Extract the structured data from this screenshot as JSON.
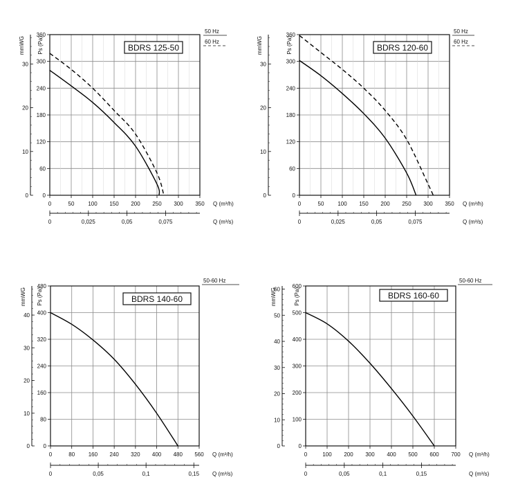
{
  "chart_data": [
    {
      "type": "line",
      "title": "BDRS 125-50",
      "x_axis": {
        "label": "Q (m³/h)",
        "ticks": [
          "0",
          "50",
          "100",
          "150",
          "200",
          "250",
          "300",
          "350"
        ],
        "range": [
          0,
          350
        ]
      },
      "x2_axis": {
        "label": "Q (m³/s)",
        "ticks": [
          "0",
          "0,025",
          "0,05",
          "0,075"
        ],
        "range": [
          0,
          0.0972
        ]
      },
      "y_axis": {
        "label": "Ps (Pa)",
        "ticks": [
          "0",
          "60",
          "120",
          "180",
          "240",
          "300",
          "360"
        ],
        "range": [
          0,
          360
        ]
      },
      "y2_axis": {
        "label": "mmWG",
        "ticks": [
          "0",
          "10",
          "20",
          "30"
        ],
        "range": [
          0,
          36.7
        ]
      },
      "legend": [
        {
          "name": "50 Hz",
          "style": "solid"
        },
        {
          "name": "60 Hz",
          "style": "dashed"
        }
      ],
      "series": [
        {
          "name": "50 Hz",
          "style": "solid",
          "x": [
            0,
            50,
            100,
            150,
            200,
            250,
            255
          ],
          "y": [
            280,
            245,
            208,
            163,
            110,
            25,
            0
          ]
        },
        {
          "name": "60 Hz",
          "style": "dashed",
          "x": [
            0,
            50,
            100,
            150,
            200,
            250,
            266
          ],
          "y": [
            318,
            282,
            240,
            190,
            137,
            50,
            0
          ]
        }
      ],
      "grid": true
    },
    {
      "type": "line",
      "title": "BDRS 120-60",
      "x_axis": {
        "label": "Q (m³/h)",
        "ticks": [
          "0",
          "50",
          "100",
          "150",
          "200",
          "250",
          "300",
          "350"
        ],
        "range": [
          0,
          350
        ]
      },
      "x2_axis": {
        "label": "Q (m³/s)",
        "ticks": [
          "0",
          "0,025",
          "0,05",
          "0,075"
        ],
        "range": [
          0,
          0.0972
        ]
      },
      "y_axis": {
        "label": "Ps (Pa)",
        "ticks": [
          "0",
          "60",
          "120",
          "180",
          "240",
          "300",
          "360"
        ],
        "range": [
          0,
          360
        ]
      },
      "y2_axis": {
        "label": "mmWG",
        "ticks": [
          "0",
          "10",
          "20",
          "30"
        ],
        "range": [
          0,
          36.7
        ]
      },
      "legend": [
        {
          "name": "50 Hz",
          "style": "solid"
        },
        {
          "name": "60 Hz",
          "style": "dashed"
        }
      ],
      "series": [
        {
          "name": "50 Hz",
          "style": "solid",
          "x": [
            0,
            50,
            100,
            150,
            200,
            250,
            272
          ],
          "y": [
            302,
            268,
            228,
            183,
            128,
            50,
            0
          ]
        },
        {
          "name": "60 Hz",
          "style": "dashed",
          "x": [
            0,
            50,
            100,
            150,
            200,
            250,
            300,
            312
          ],
          "y": [
            358,
            320,
            282,
            240,
            190,
            125,
            25,
            0
          ]
        }
      ],
      "grid": true
    },
    {
      "type": "line",
      "title": "BDRS 140-60",
      "x_axis": {
        "label": "Q (m³/h)",
        "ticks": [
          "0",
          "80",
          "160",
          "240",
          "320",
          "400",
          "480",
          "560"
        ],
        "range": [
          0,
          560
        ]
      },
      "x2_axis": {
        "label": "Q (m³/s)",
        "ticks": [
          "0",
          "0,05",
          "0,1",
          "0,15"
        ],
        "range": [
          0,
          0.1556
        ]
      },
      "y_axis": {
        "label": "Ps (Pa)",
        "ticks": [
          "0",
          "80",
          "160",
          "240",
          "320",
          "400",
          "480"
        ],
        "range": [
          0,
          480
        ]
      },
      "y2_axis": {
        "label": "mmWG",
        "ticks": [
          "0",
          "10",
          "20",
          "30",
          "40"
        ],
        "range": [
          0,
          48.9
        ]
      },
      "legend": [
        {
          "name": "50-60 Hz",
          "style": "solid"
        }
      ],
      "series": [
        {
          "name": "50-60 Hz",
          "style": "solid",
          "x": [
            0,
            80,
            160,
            240,
            320,
            400,
            480
          ],
          "y": [
            400,
            365,
            318,
            260,
            185,
            98,
            0
          ]
        }
      ],
      "grid": true
    },
    {
      "type": "line",
      "title": "BDRS 160-60",
      "x_axis": {
        "label": "Q (m³/h)",
        "ticks": [
          "0",
          "100",
          "200",
          "300",
          "400",
          "500",
          "600",
          "700"
        ],
        "range": [
          0,
          700
        ]
      },
      "x2_axis": {
        "label": "Q (m³/s)",
        "ticks": [
          "0",
          "0,05",
          "0,1",
          "0,15"
        ],
        "range": [
          0,
          0.1944
        ]
      },
      "y_axis": {
        "label": "Ps (Pa)",
        "ticks": [
          "0",
          "100",
          "200",
          "300",
          "400",
          "500",
          "600"
        ],
        "range": [
          0,
          600
        ]
      },
      "y2_axis": {
        "label": "mmWG",
        "ticks": [
          "0",
          "10",
          "20",
          "30",
          "40",
          "50",
          "60"
        ],
        "range": [
          0,
          61.2
        ]
      },
      "legend": [
        {
          "name": "50-60 Hz",
          "style": "solid"
        }
      ],
      "series": [
        {
          "name": "50-60 Hz",
          "style": "solid",
          "x": [
            0,
            100,
            200,
            300,
            400,
            500,
            600
          ],
          "y": [
            500,
            458,
            393,
            310,
            215,
            112,
            0
          ]
        }
      ],
      "grid": true
    }
  ]
}
